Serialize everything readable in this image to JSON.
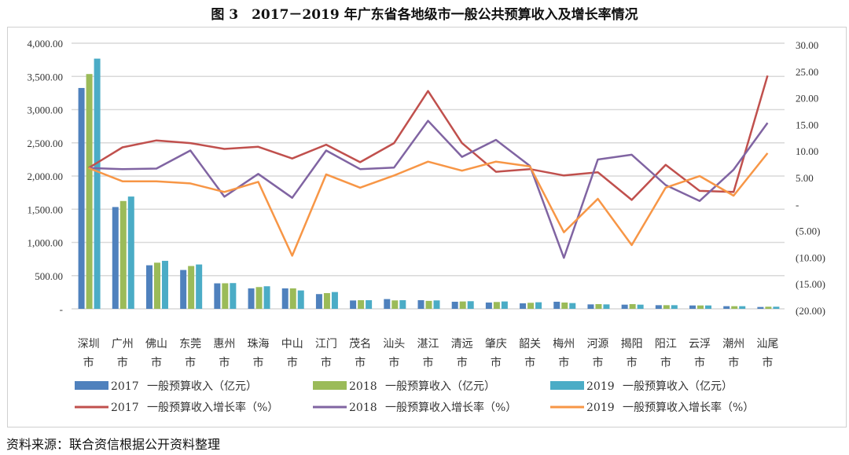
{
  "title": "图 3　2017－2019 年广东省各地级市一般公共预算收入及增长率情况",
  "source": "资料来源：联合资信根据公开资料整理",
  "chart_data": {
    "type": "bar+line",
    "categories": [
      "深圳市",
      "广州市",
      "佛山市",
      "东莞市",
      "惠州市",
      "珠海市",
      "中山市",
      "江门市",
      "茂名市",
      "汕头市",
      "湛江市",
      "清远市",
      "肇庆市",
      "韶关市",
      "梅州市",
      "河源市",
      "揭阳市",
      "阳江市",
      "云浮市",
      "潮州市",
      "汕尾市"
    ],
    "left_axis": {
      "ylim": [
        0,
        4000
      ],
      "ticks": [
        "-",
        "500.00",
        "1,000.00",
        "1,500.00",
        "2,000.00",
        "2,500.00",
        "3,000.00",
        "3,500.00",
        "4,000.00"
      ],
      "unit": "亿元"
    },
    "right_axis": {
      "ylim": [
        -20,
        30
      ],
      "ticks": [
        "(20.00)",
        "(15.00)",
        "(10.00)",
        "(5.00)",
        "-",
        "5.00",
        "10.00",
        "15.00",
        "20.00",
        "25.00",
        "30.00"
      ],
      "unit": "%"
    },
    "grid": true,
    "legend_placement": "bottom",
    "bars": [
      {
        "name": "2017　一般预算收入（亿元）",
        "color": "#4f81bd",
        "values": [
          3326,
          1533,
          656,
          585,
          384,
          308,
          308,
          222,
          126,
          147,
          130,
          107,
          95,
          83,
          107,
          67,
          63,
          55,
          51,
          40,
          28
        ]
      },
      {
        "name": "2018　一般预算收入（亿元）",
        "color": "#9bbb59",
        "values": [
          3536,
          1624,
          695,
          645,
          385,
          328,
          308,
          237,
          130,
          127,
          120,
          111,
          103,
          91,
          95,
          71,
          71,
          55,
          51,
          40,
          32
        ]
      },
      {
        "name": "2019　一般预算收入（亿元）",
        "color": "#4bacc6",
        "values": [
          3768,
          1691,
          723,
          668,
          388,
          340,
          277,
          253,
          130,
          130,
          127,
          115,
          111,
          99,
          87,
          67,
          63,
          55,
          51,
          40,
          32
        ]
      }
    ],
    "lines": [
      {
        "name": "2017　一般预算收入增长率（%）",
        "color": "#c0504d",
        "values": [
          6.8,
          10.7,
          12.0,
          11.5,
          10.4,
          10.8,
          8.6,
          11.2,
          7.9,
          11.5,
          21.3,
          11.5,
          6.1,
          6.6,
          5.4,
          6.0,
          0.8,
          7.4,
          2.5,
          2.3,
          24.2
        ]
      },
      {
        "name": "2018　一般预算收入增长率（%）",
        "color": "#8064a2",
        "values": [
          6.8,
          6.6,
          6.7,
          10.1,
          1.4,
          5.7,
          1.2,
          10.1,
          6.6,
          6.9,
          15.7,
          8.9,
          12.1,
          7.2,
          -10.1,
          8.4,
          9.3,
          3.6,
          0.6,
          6.5,
          15.3
        ]
      },
      {
        "name": "2019　一般预算收入增长率（%）",
        "color": "#f79646",
        "values": [
          6.8,
          4.3,
          4.3,
          3.9,
          2.3,
          4.2,
          -9.7,
          5.6,
          3.1,
          5.4,
          8.0,
          6.3,
          8.0,
          7.1,
          -5.3,
          1.0,
          -7.7,
          3.1,
          5.3,
          1.6,
          9.6
        ]
      }
    ]
  }
}
